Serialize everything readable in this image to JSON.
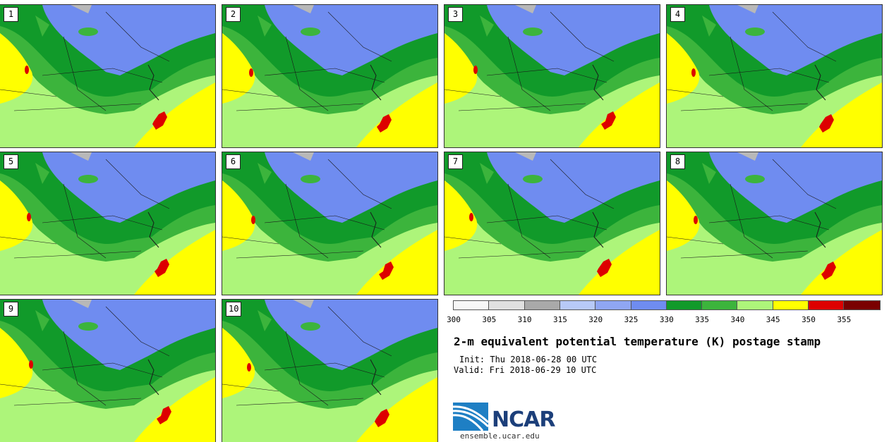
{
  "panels": [
    {
      "label": "1"
    },
    {
      "label": "2"
    },
    {
      "label": "3"
    },
    {
      "label": "4"
    },
    {
      "label": "5"
    },
    {
      "label": "6"
    },
    {
      "label": "7"
    },
    {
      "label": "8"
    },
    {
      "label": "9"
    },
    {
      "label": "10"
    }
  ],
  "colorbar": {
    "ticks": [
      "300",
      "305",
      "310",
      "315",
      "320",
      "325",
      "330",
      "335",
      "340",
      "345",
      "350",
      "355"
    ],
    "colors": [
      "#f7f7f7",
      "#e0e0e0",
      "#a9a9a9",
      "#b7c9f7",
      "#8fa6f3",
      "#6f8cf0",
      "#119a2a",
      "#3cb43c",
      "#adf57a",
      "#ffff00",
      "#dd0000",
      "#7a0000"
    ]
  },
  "title": "2-m equivalent potential temperature (K) postage stamp",
  "init": "Init: Thu 2018-06-28 00 UTC",
  "valid": "Valid: Fri 2018-06-29 10 UTC",
  "logo": {
    "word": "NCAR",
    "url": "ensemble.ucar.edu"
  }
}
